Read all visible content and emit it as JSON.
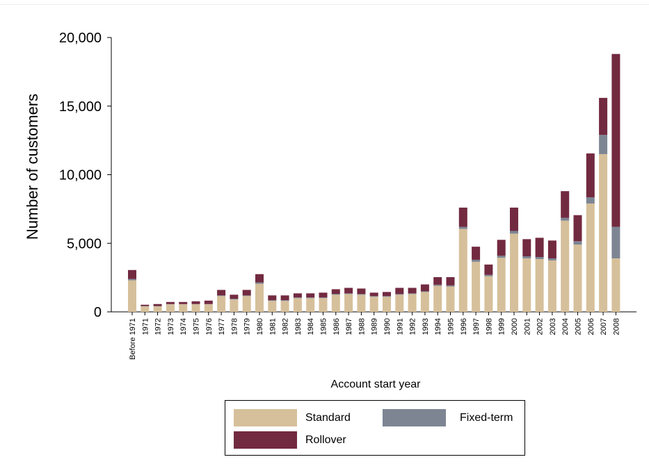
{
  "chart_data": {
    "type": "bar",
    "stacked": true,
    "xlabel": "Account start year",
    "ylabel": "Number of customers",
    "ylim": [
      0,
      20000
    ],
    "yticks": [
      0,
      5000,
      10000,
      15000,
      20000
    ],
    "ytick_labels": [
      "0",
      "5,000",
      "10,000",
      "15,000",
      "20,000"
    ],
    "legend_position": "bottom",
    "categories": [
      "Before 1971",
      "1971",
      "1972",
      "1973",
      "1974",
      "1975",
      "1976",
      "1977",
      "1978",
      "1979",
      "1980",
      "1981",
      "1982",
      "1983",
      "1984",
      "1985",
      "1986",
      "1987",
      "1988",
      "1989",
      "1990",
      "1991",
      "1992",
      "1993",
      "1994",
      "1995",
      "1996",
      "1997",
      "1998",
      "1999",
      "2000",
      "2001",
      "2002",
      "2003",
      "2004",
      "2005",
      "2006",
      "2007",
      "2008"
    ],
    "series": [
      {
        "name": "Standard",
        "color": "#d6c09b",
        "values": [
          2300,
          400,
          400,
          550,
          550,
          550,
          550,
          1150,
          900,
          1150,
          2050,
          800,
          800,
          1000,
          1000,
          1000,
          1250,
          1300,
          1250,
          1100,
          1100,
          1250,
          1300,
          1450,
          1900,
          1850,
          6050,
          3650,
          2600,
          3950,
          5700,
          3900,
          3850,
          3750,
          6650,
          4900,
          7900,
          11500,
          3900
        ]
      },
      {
        "name": "Fixed-term",
        "color": "#7d8593",
        "values": [
          100,
          20,
          20,
          20,
          20,
          20,
          20,
          50,
          50,
          50,
          100,
          50,
          50,
          50,
          50,
          50,
          50,
          50,
          50,
          50,
          50,
          50,
          50,
          50,
          80,
          80,
          150,
          150,
          100,
          150,
          200,
          150,
          150,
          150,
          200,
          250,
          450,
          1400,
          2300
        ]
      },
      {
        "name": "Rollover",
        "color": "#722a40",
        "values": [
          650,
          100,
          150,
          150,
          150,
          200,
          250,
          400,
          300,
          400,
          600,
          350,
          350,
          300,
          300,
          350,
          350,
          400,
          400,
          250,
          300,
          450,
          400,
          500,
          550,
          600,
          1400,
          950,
          750,
          1150,
          1700,
          1250,
          1400,
          1300,
          1950,
          1900,
          3200,
          2700,
          12600
        ]
      }
    ]
  }
}
